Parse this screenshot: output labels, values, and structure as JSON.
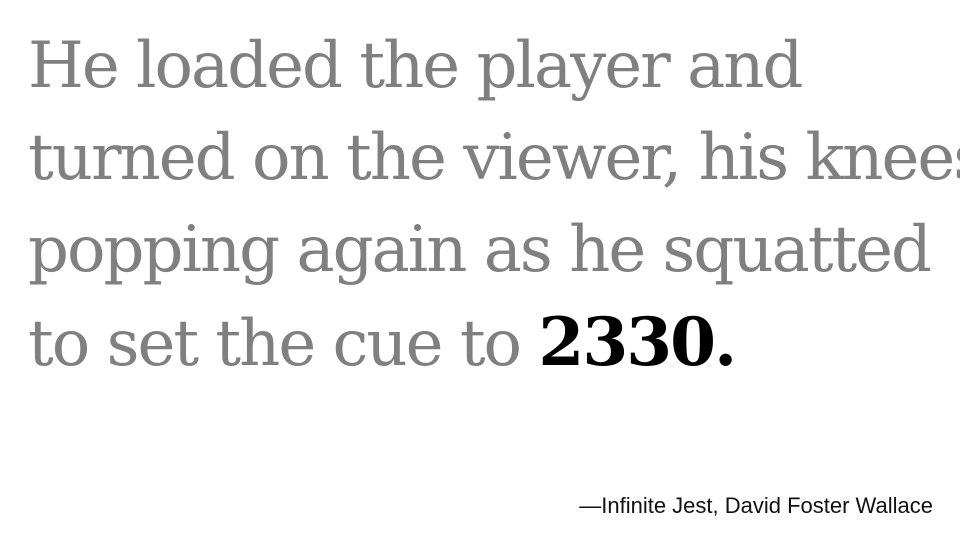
{
  "quote": {
    "lines": [
      "He loaded the player and",
      "turned on the viewer, his knees",
      "popping again as he squatted",
      "to set the cue to "
    ],
    "emphasis": "2330.",
    "text_color": "#808080",
    "emphasis_color": "#000000"
  },
  "attribution": "—Infinite Jest, David Foster Wallace"
}
